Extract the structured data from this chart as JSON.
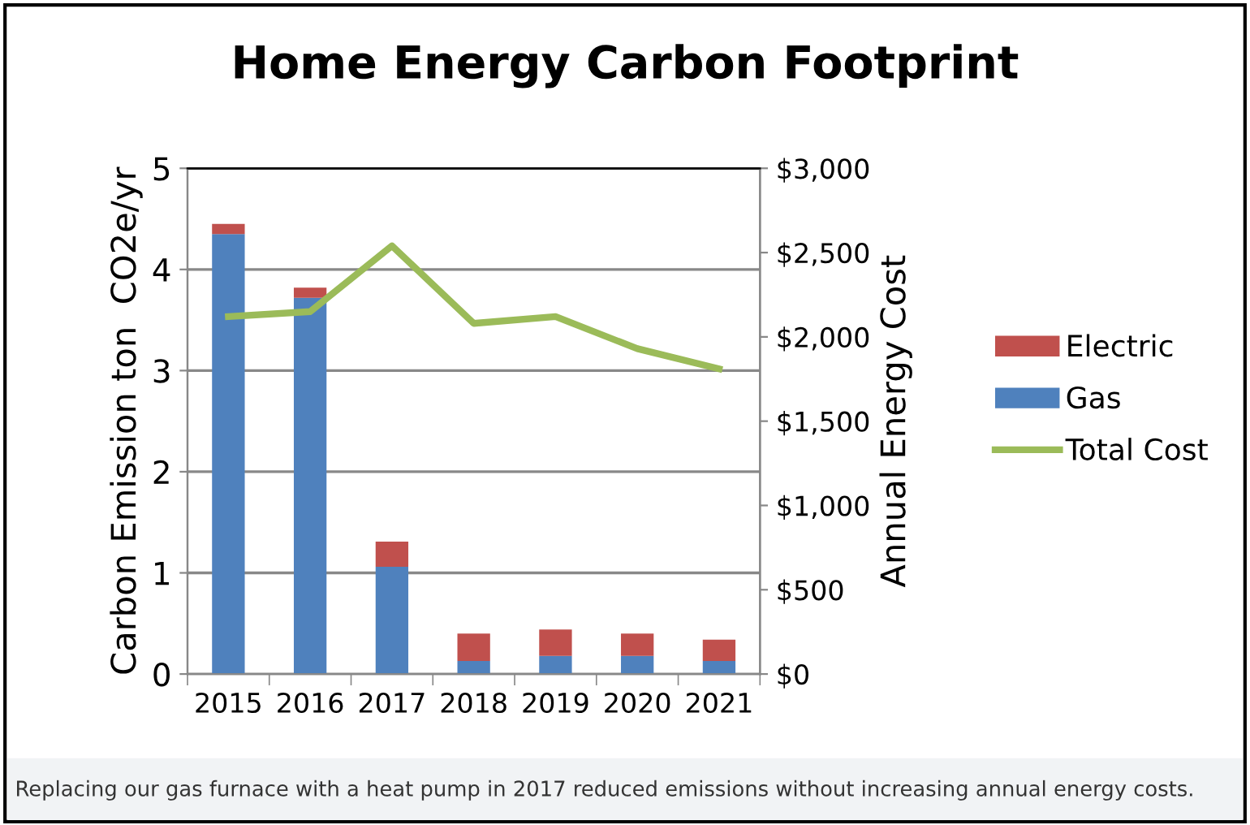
{
  "chart_data": {
    "type": "bar",
    "title": "Home Energy Carbon Footprint",
    "ylabel": "Carbon Emission ton  CO2e/yr",
    "y2label": "Annual Energy Cost",
    "categories": [
      "2015",
      "2016",
      "2017",
      "2018",
      "2019",
      "2020",
      "2021"
    ],
    "stacked": true,
    "series": [
      {
        "name": "Gas",
        "color": "#4f81bd",
        "values": [
          4.35,
          3.72,
          1.06,
          0.13,
          0.18,
          0.18,
          0.13
        ]
      },
      {
        "name": "Electric",
        "color": "#c0504d",
        "values": [
          0.1,
          0.1,
          0.25,
          0.27,
          0.26,
          0.22,
          0.21
        ]
      },
      {
        "name": "Total Cost",
        "type": "line",
        "axis": "y2",
        "color": "#9bbb59",
        "values": [
          2120,
          2150,
          2540,
          2080,
          2120,
          1930,
          1810
        ]
      }
    ],
    "ylim": [
      0,
      5
    ],
    "yticks": [
      0,
      1,
      2,
      3,
      4,
      5
    ],
    "y2lim": [
      0,
      3000
    ],
    "y2ticks": [
      {
        "value": 0,
        "label": "$0"
      },
      {
        "value": 500,
        "label": "$500"
      },
      {
        "value": 1000,
        "label": "$1,000"
      },
      {
        "value": 1500,
        "label": "$1,500"
      },
      {
        "value": 2000,
        "label": "$2,000"
      },
      {
        "value": 2500,
        "label": "$2,500"
      },
      {
        "value": 3000,
        "label": "$3,000"
      }
    ],
    "grid": "y",
    "legend": "right",
    "annotations": [
      "Replacing our gas furnace with a heat pump in 2017 reduced emissions without increasing annual energy costs."
    ]
  }
}
